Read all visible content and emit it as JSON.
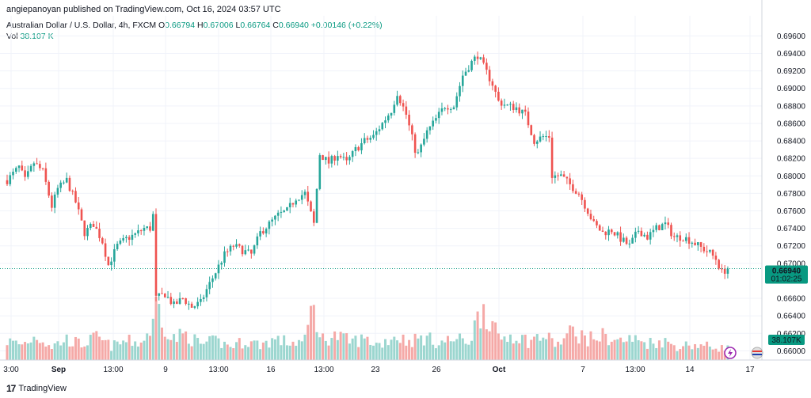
{
  "header": {
    "publisher": "angiepanoyan published on TradingView.com, Oct 16, 2024 03:57 UTC"
  },
  "legend": {
    "symbol": "Australian Dollar / U.S. Dollar, 4h, FXCM",
    "o_label": "O",
    "o_value": "0.66794",
    "h_label": "H",
    "h_value": "0.67006",
    "l_label": "L",
    "l_value": "0.66764",
    "c_label": "C",
    "c_value": "0.66940",
    "change": "+0.00146 (+0.22%)",
    "vol_label": "Vol",
    "vol_value": "38.107 K"
  },
  "footer": {
    "brand": "TradingView",
    "logo_glyph": "17"
  },
  "colors": {
    "up": "#26a69a",
    "down": "#ef5350",
    "vol_up": "#9bd6cf",
    "vol_down": "#f5a9a7",
    "grid": "#f0f3fa",
    "price_tag": "#089981"
  },
  "chart_data": {
    "type": "candlestick",
    "x_tick_labels": [
      "3:00",
      "Sep",
      "13:00",
      "9",
      "13:00",
      "16",
      "13:00",
      "23",
      "26",
      "Oct",
      "7",
      "13:00",
      "14",
      "17"
    ],
    "x_tick_bold": [
      false,
      true,
      false,
      false,
      false,
      false,
      false,
      false,
      false,
      true,
      false,
      false,
      false,
      false
    ],
    "y_tick_labels": [
      "0.69600",
      "0.69400",
      "0.69200",
      "0.69000",
      "0.68800",
      "0.68600",
      "0.68400",
      "0.68200",
      "0.68000",
      "0.67800",
      "0.67600",
      "0.67400",
      "0.67200",
      "0.67000",
      "0.66600",
      "0.66400",
      "0.66200",
      "0.66000"
    ],
    "y_tick_values": [
      0.696,
      0.694,
      0.692,
      0.69,
      0.688,
      0.686,
      0.684,
      0.682,
      0.68,
      0.678,
      0.676,
      0.674,
      0.672,
      0.67,
      0.666,
      0.664,
      0.662,
      0.66
    ],
    "ylim": [
      0.6594,
      0.6983
    ],
    "last_price_label": "0.66940",
    "countdown_label": "01:02:25",
    "last_price": 0.6694,
    "vol_label": "38.107K",
    "vol_max": 175,
    "candle_anchors": [
      [
        0,
        0.6795
      ],
      [
        4,
        0.681
      ],
      [
        6,
        0.6795
      ],
      [
        9,
        0.6815
      ],
      [
        12,
        0.6805
      ],
      [
        15,
        0.6765
      ],
      [
        17,
        0.6785
      ],
      [
        20,
        0.6795
      ],
      [
        23,
        0.677
      ],
      [
        26,
        0.6735
      ],
      [
        29,
        0.6745
      ],
      [
        32,
        0.6725
      ],
      [
        34,
        0.6698
      ],
      [
        37,
        0.672
      ],
      [
        40,
        0.6728
      ],
      [
        43,
        0.6733
      ],
      [
        46,
        0.674
      ],
      [
        48,
        0.674
      ],
      [
        49,
        0.6755
      ],
      [
        50,
        0.666
      ],
      [
        53,
        0.6665
      ],
      [
        56,
        0.6652
      ],
      [
        59,
        0.666
      ],
      [
        62,
        0.665
      ],
      [
        65,
        0.6655
      ],
      [
        67,
        0.667
      ],
      [
        70,
        0.669
      ],
      [
        73,
        0.671
      ],
      [
        76,
        0.672
      ],
      [
        79,
        0.6715
      ],
      [
        82,
        0.671
      ],
      [
        85,
        0.6735
      ],
      [
        88,
        0.6745
      ],
      [
        91,
        0.6755
      ],
      [
        94,
        0.676
      ],
      [
        97,
        0.6775
      ],
      [
        100,
        0.678
      ],
      [
        103,
        0.6745
      ],
      [
        105,
        0.6825
      ],
      [
        108,
        0.6815
      ],
      [
        111,
        0.6825
      ],
      [
        114,
        0.6815
      ],
      [
        117,
        0.683
      ],
      [
        120,
        0.684
      ],
      [
        123,
        0.6845
      ],
      [
        126,
        0.686
      ],
      [
        129,
        0.6875
      ],
      [
        131,
        0.6895
      ],
      [
        134,
        0.687
      ],
      [
        137,
        0.683
      ],
      [
        138,
        0.6825
      ],
      [
        141,
        0.685
      ],
      [
        144,
        0.6865
      ],
      [
        147,
        0.688
      ],
      [
        150,
        0.688
      ],
      [
        153,
        0.6915
      ],
      [
        156,
        0.693
      ],
      [
        158,
        0.6938
      ],
      [
        160,
        0.6925
      ],
      [
        163,
        0.6905
      ],
      [
        165,
        0.6885
      ],
      [
        168,
        0.688
      ],
      [
        171,
        0.6878
      ],
      [
        174,
        0.687
      ],
      [
        177,
        0.684
      ],
      [
        180,
        0.6845
      ],
      [
        182,
        0.6845
      ],
      [
        183,
        0.68
      ],
      [
        186,
        0.68
      ],
      [
        189,
        0.679
      ],
      [
        192,
        0.678
      ],
      [
        195,
        0.676
      ],
      [
        197,
        0.6745
      ],
      [
        200,
        0.6735
      ],
      [
        203,
        0.6738
      ],
      [
        206,
        0.6728
      ],
      [
        209,
        0.672
      ],
      [
        212,
        0.6738
      ],
      [
        215,
        0.673
      ],
      [
        218,
        0.674
      ],
      [
        221,
        0.6745
      ],
      [
        224,
        0.673
      ],
      [
        227,
        0.673
      ],
      [
        230,
        0.6725
      ],
      [
        233,
        0.6718
      ],
      [
        236,
        0.6712
      ],
      [
        238,
        0.6705
      ],
      [
        240,
        0.669
      ],
      [
        242,
        0.6694
      ]
    ],
    "volume_anchors": [
      [
        0,
        55
      ],
      [
        5,
        45
      ],
      [
        10,
        70
      ],
      [
        15,
        40
      ],
      [
        20,
        60
      ],
      [
        25,
        45
      ],
      [
        30,
        65
      ],
      [
        35,
        40
      ],
      [
        40,
        55
      ],
      [
        45,
        50
      ],
      [
        49,
        100
      ],
      [
        50,
        175
      ],
      [
        55,
        60
      ],
      [
        60,
        75
      ],
      [
        65,
        45
      ],
      [
        70,
        55
      ],
      [
        75,
        40
      ],
      [
        80,
        55
      ],
      [
        85,
        45
      ],
      [
        90,
        60
      ],
      [
        95,
        50
      ],
      [
        100,
        55
      ],
      [
        103,
        175
      ],
      [
        105,
        60
      ],
      [
        110,
        70
      ],
      [
        115,
        55
      ],
      [
        120,
        60
      ],
      [
        125,
        45
      ],
      [
        130,
        70
      ],
      [
        135,
        55
      ],
      [
        140,
        65
      ],
      [
        145,
        50
      ],
      [
        150,
        60
      ],
      [
        155,
        55
      ],
      [
        160,
        160
      ],
      [
        165,
        60
      ],
      [
        170,
        75
      ],
      [
        175,
        55
      ],
      [
        180,
        70
      ],
      [
        185,
        45
      ],
      [
        190,
        85
      ],
      [
        195,
        60
      ],
      [
        200,
        70
      ],
      [
        205,
        55
      ],
      [
        210,
        60
      ],
      [
        215,
        50
      ],
      [
        220,
        55
      ],
      [
        225,
        40
      ],
      [
        230,
        45
      ],
      [
        235,
        40
      ],
      [
        240,
        35
      ],
      [
        242,
        38
      ]
    ],
    "n_candles": 243
  }
}
